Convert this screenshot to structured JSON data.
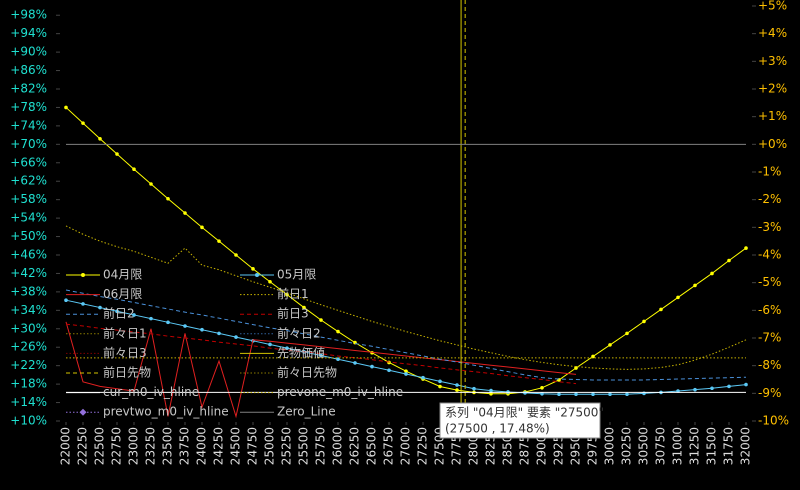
{
  "chart_data": {
    "type": "line",
    "x": [
      22000,
      22250,
      22500,
      22750,
      23000,
      23250,
      23500,
      23750,
      24000,
      24250,
      24500,
      24750,
      25000,
      25250,
      25500,
      25750,
      26000,
      26250,
      26500,
      26750,
      27000,
      27250,
      27500,
      27750,
      28000,
      28250,
      28500,
      28750,
      29000,
      29250,
      29500,
      29750,
      30000,
      30250,
      30500,
      30750,
      31000,
      31250,
      31500,
      31750,
      32000
    ],
    "xlim": [
      22000,
      32000
    ],
    "xticks": [
      22000,
      22250,
      22500,
      22750,
      23000,
      23250,
      23500,
      23750,
      24000,
      24250,
      24500,
      24750,
      25000,
      25250,
      25500,
      25750,
      26000,
      26250,
      26500,
      26750,
      27000,
      27250,
      27500,
      27750,
      28000,
      28250,
      28500,
      28750,
      29000,
      29250,
      29500,
      29750,
      30000,
      30250,
      30500,
      30750,
      31000,
      31250,
      31500,
      31750,
      32000
    ],
    "ylim": [
      10,
      100
    ],
    "yticks": [
      {
        "value": 10,
        "label": "+10%"
      },
      {
        "value": 14,
        "label": "+14%"
      },
      {
        "value": 18,
        "label": "+18%"
      },
      {
        "value": 22,
        "label": "+22%"
      },
      {
        "value": 26,
        "label": "+26%"
      },
      {
        "value": 30,
        "label": "+30%"
      },
      {
        "value": 34,
        "label": "+34%"
      },
      {
        "value": 38,
        "label": "+38%"
      },
      {
        "value": 42,
        "label": "+42%"
      },
      {
        "value": 46,
        "label": "+46%"
      },
      {
        "value": 50,
        "label": "+50%"
      },
      {
        "value": 54,
        "label": "+54%"
      },
      {
        "value": 58,
        "label": "+58%"
      },
      {
        "value": 62,
        "label": "+62%"
      },
      {
        "value": 66,
        "label": "+66%"
      },
      {
        "value": 70,
        "label": "+70%"
      },
      {
        "value": 74,
        "label": "+74%"
      },
      {
        "value": 78,
        "label": "+78%"
      },
      {
        "value": 82,
        "label": "+82%"
      },
      {
        "value": 86,
        "label": "+86%"
      },
      {
        "value": 90,
        "label": "+90%"
      },
      {
        "value": 94,
        "label": "+94%"
      },
      {
        "value": 98,
        "label": "+98%"
      }
    ],
    "y2lim": [
      -10,
      5
    ],
    "y2ticks": [
      {
        "value": 5,
        "label": "+5%"
      },
      {
        "value": 4,
        "label": "+4%"
      },
      {
        "value": 3,
        "label": "+3%"
      },
      {
        "value": 2,
        "label": "+2%"
      },
      {
        "value": 1,
        "label": "+1%"
      },
      {
        "value": 0,
        "label": "+0%"
      },
      {
        "value": -1,
        "label": "-1%"
      },
      {
        "value": -2,
        "label": "-2%"
      },
      {
        "value": -3,
        "label": "-3%"
      },
      {
        "value": -4,
        "label": "-4%"
      },
      {
        "value": -5,
        "label": "-5%"
      },
      {
        "value": -6,
        "label": "-6%"
      },
      {
        "value": -7,
        "label": "-7%"
      },
      {
        "value": -8,
        "label": "-8%"
      },
      {
        "value": -9,
        "label": "-9%"
      },
      {
        "value": -10,
        "label": "-10%"
      }
    ],
    "series": [
      {
        "name": "04月限",
        "color": "#ffff00",
        "style": "solid",
        "marker": "dot",
        "values": [
          78,
          74.6,
          71.2,
          67.9,
          64.6,
          61.4,
          58.2,
          55.1,
          52,
          49,
          46,
          43,
          40.2,
          37.4,
          34.6,
          31.9,
          29.4,
          27.0,
          24.8,
          22.7,
          20.8,
          19.1,
          17.48,
          16.7,
          16.2,
          15.9,
          15.9,
          16.3,
          17.2,
          18.9,
          21.5,
          24,
          26.5,
          29,
          31.6,
          34.2,
          36.8,
          39.4,
          42,
          44.8,
          47.5
        ]
      },
      {
        "name": "05月限",
        "color": "#5bc8f5",
        "style": "solid",
        "marker": "dot",
        "values": [
          36.2,
          35.4,
          34.6,
          33.8,
          33.0,
          32.2,
          31.4,
          30.6,
          29.8,
          29.0,
          28.2,
          27.4,
          26.6,
          25.8,
          25.0,
          24.2,
          23.4,
          22.6,
          21.8,
          21.0,
          20.2,
          19.4,
          18.6,
          17.8,
          17.0,
          16.6,
          16.3,
          16.1,
          15.9,
          15.8,
          15.8,
          15.8,
          15.8,
          15.8,
          16.0,
          16.2,
          16.5,
          16.8,
          17.1,
          17.5,
          17.9
        ]
      },
      {
        "name": "06月限",
        "color": "#e02020",
        "style": "solid",
        "values": [
          31.5,
          18.5,
          17.5,
          17,
          16.5,
          30,
          11,
          29,
          13,
          23,
          11,
          27.6,
          27.3,
          26.9,
          26.5,
          26.1,
          25.7,
          25.3,
          24.9,
          24.5,
          24.1,
          23.7,
          23.3,
          22.9,
          22.5,
          22.1,
          21.7,
          21.3,
          20.9,
          20.5,
          20.1,
          null,
          null,
          null,
          null,
          null,
          null,
          null,
          null,
          null,
          null
        ]
      },
      {
        "name": "前日1",
        "color": "#c8b400",
        "style": "dotted",
        "values": [
          52.3,
          50.5,
          49,
          47.8,
          46.8,
          45.5,
          44.2,
          47.5,
          43.8,
          42.8,
          41.5,
          40.2,
          39,
          37.8,
          36.5,
          35.2,
          34,
          32.8,
          31.6,
          30.5,
          29.4,
          28.4,
          27.4,
          26.5,
          25.6,
          24.8,
          24,
          23.3,
          22.7,
          22.2,
          21.8,
          21.5,
          21.3,
          21.2,
          21.3,
          21.6,
          22.2,
          23.2,
          24.5,
          26,
          27.6
        ]
      },
      {
        "name": "前日2",
        "color": "#4a90d9",
        "style": "dashed",
        "values": [
          38.4,
          37.7,
          37.0,
          36.4,
          35.7,
          35.0,
          34.3,
          33.6,
          33.0,
          32.3,
          31.6,
          30.9,
          30.2,
          29.6,
          28.9,
          28.2,
          27.5,
          26.8,
          26.2,
          25.5,
          24.8,
          24.1,
          23.4,
          22.8,
          22.1,
          21.4,
          20.7,
          20.0,
          19.4,
          19.1,
          19.0,
          18.9,
          18.9,
          18.9,
          18.9,
          19.0,
          19.1,
          19.2,
          19.3,
          19.4,
          19.5
        ]
      },
      {
        "name": "前日3",
        "color": "#c00000",
        "style": "dashed",
        "values": [
          31.0,
          30.6,
          30.1,
          29.7,
          29.3,
          28.9,
          28.4,
          28.0,
          27.6,
          27.1,
          26.7,
          26.3,
          25.8,
          25.4,
          25.0,
          24.6,
          24.1,
          23.7,
          23.3,
          22.8,
          22.4,
          22.0,
          21.5,
          21.1,
          20.7,
          20.3,
          19.8,
          19.4,
          19.0,
          18.5,
          18.1,
          null,
          null,
          null,
          null,
          null,
          null,
          null,
          null,
          null,
          null
        ]
      },
      {
        "name": "前々日1",
        "color": "#8a7a00",
        "style": "dotted"
      },
      {
        "name": "前々日2",
        "color": "#2f5f99",
        "style": "dotted"
      },
      {
        "name": "前々日3",
        "color": "#800000",
        "style": "dotted"
      },
      {
        "name": "先物価値",
        "color": "#d4c400",
        "style": "solid",
        "x_value": 27810
      },
      {
        "name": "前日先物",
        "color": "#d4c400",
        "style": "dashed",
        "x_value": 27870
      },
      {
        "name": "前々日先物",
        "color": "#8a7a00",
        "style": "dotted"
      },
      {
        "name": "cur_m0_iv_hline",
        "color": "#ffffff",
        "style": "solid",
        "value": 16.2
      },
      {
        "name": "prevone_m0_iv_hline",
        "color": "#c8b400",
        "style": "dotted",
        "value": 23.7
      },
      {
        "name": "prevtwo_m0_iv_hline",
        "color": "#9370db",
        "style": "dotted",
        "marker": "diamond"
      },
      {
        "name": "Zero_Line",
        "color": "#808080",
        "style": "solid",
        "axis": "y2",
        "value": 0
      }
    ],
    "tooltip": [
      "系列 \"04月限\" 要素 \"27500\"",
      "(27500 , 17.48%)"
    ]
  }
}
